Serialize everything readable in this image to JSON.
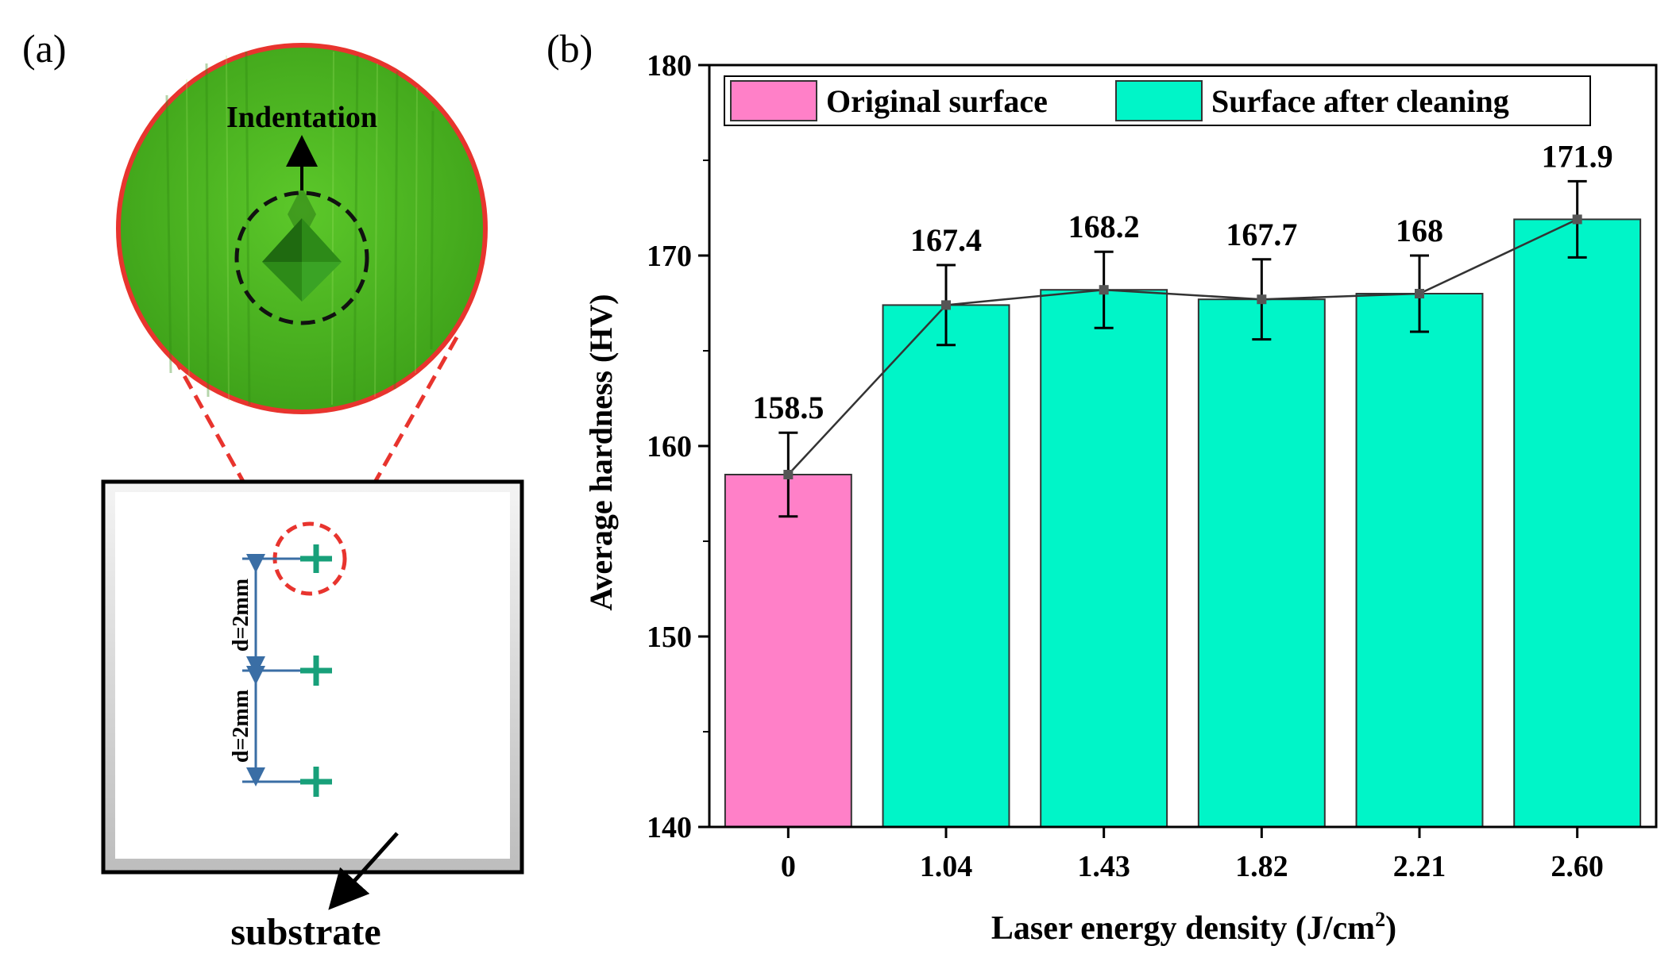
{
  "panel_a": {
    "label": "(a)",
    "magnified_label": "Indentation",
    "spacing_label_top": "d=2mm",
    "spacing_label_bottom": "d=2mm",
    "substrate_label": "substrate",
    "colors": {
      "zoom_outline": "#e8342e",
      "zoom_fill": "#4fba1f",
      "mark": "#18a07a",
      "dimension": "#3a6ea5"
    }
  },
  "panel_b": {
    "label": "(b)"
  },
  "chart_data": {
    "type": "bar",
    "title": "",
    "xlabel": "Laser energy density (J/cm",
    "xlabel_superscript": "2",
    "xlabel_suffix": ")",
    "ylabel": "Average hardness (HV)",
    "ylim": [
      140,
      180
    ],
    "yticks": [
      "140",
      "150",
      "160",
      "170",
      "180"
    ],
    "grid": false,
    "legend_position": "top",
    "categories": [
      "0",
      "1.04",
      "1.43",
      "1.82",
      "2.21",
      "2.60"
    ],
    "values": [
      158.5,
      167.4,
      168.2,
      167.7,
      168,
      171.9
    ],
    "value_labels": [
      "158.5",
      "167.4",
      "168.2",
      "167.7",
      "168",
      "171.9"
    ],
    "errors": [
      2.2,
      2.1,
      2.0,
      2.1,
      2.0,
      2.0
    ],
    "series": [
      {
        "name": "Original surface",
        "color": "#ff80c8",
        "categories": [
          "0"
        ]
      },
      {
        "name": "Surface after cleaning",
        "color": "#00f5c8",
        "categories": [
          "1.04",
          "1.43",
          "1.82",
          "2.21",
          "2.60"
        ]
      }
    ],
    "trend_line": true
  }
}
